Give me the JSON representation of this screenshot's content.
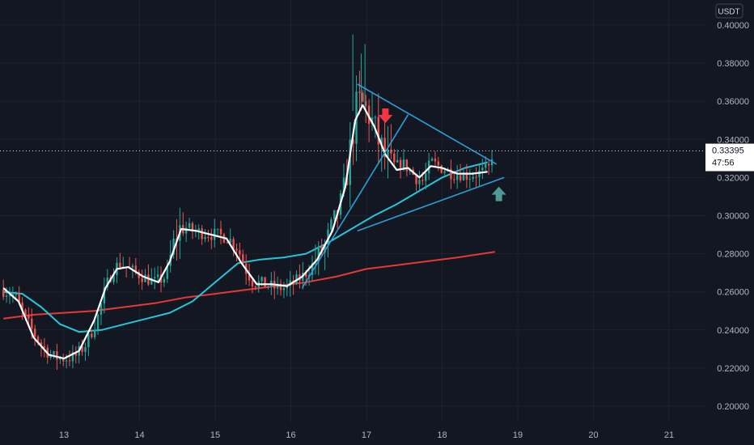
{
  "chart_data": {
    "type": "candlestick",
    "currency": "USDT",
    "ylim": [
      0.19,
      0.405
    ],
    "xlim": [
      12.2,
      21.5
    ],
    "y_ticks": [
      "0.40000",
      "0.38000",
      "0.36000",
      "0.34000",
      "0.32000",
      "0.30000",
      "0.28000",
      "0.26000",
      "0.24000",
      "0.22000",
      "0.20000"
    ],
    "y_tick_values": [
      0.4,
      0.38,
      0.36,
      0.34,
      0.32,
      0.3,
      0.28,
      0.26,
      0.24,
      0.22,
      0.2
    ],
    "x_ticks": [
      "13",
      "14",
      "15",
      "16",
      "17",
      "18",
      "19",
      "20",
      "21"
    ],
    "x_tick_values": [
      13,
      14,
      15,
      16,
      17,
      18,
      19,
      20,
      21
    ],
    "current_price": "0.33395",
    "current_price_value": 0.33395,
    "countdown": "47:56",
    "colors": {
      "up": "#26a69a",
      "down": "#ef5350",
      "fast_ma": "#ffffff",
      "mid_ma": "#26c6da",
      "slow_ma": "#e53935",
      "trendline": "#2a9fd6",
      "arrow_down": "#f23645",
      "arrow_up": "#4f9a94"
    },
    "price_path": [
      [
        12.2,
        0.261
      ],
      [
        12.35,
        0.258
      ],
      [
        12.5,
        0.245
      ],
      [
        12.7,
        0.232
      ],
      [
        12.85,
        0.226
      ],
      [
        13.0,
        0.225
      ],
      [
        13.15,
        0.226
      ],
      [
        13.3,
        0.233
      ],
      [
        13.45,
        0.247
      ],
      [
        13.55,
        0.262
      ],
      [
        13.65,
        0.272
      ],
      [
        13.75,
        0.275
      ],
      [
        13.9,
        0.271
      ],
      [
        14.05,
        0.268
      ],
      [
        14.2,
        0.265
      ],
      [
        14.35,
        0.268
      ],
      [
        14.45,
        0.285
      ],
      [
        14.55,
        0.295
      ],
      [
        14.7,
        0.292
      ],
      [
        14.85,
        0.291
      ],
      [
        15.0,
        0.29
      ],
      [
        15.15,
        0.289
      ],
      [
        15.3,
        0.283
      ],
      [
        15.4,
        0.272
      ],
      [
        15.5,
        0.265
      ],
      [
        15.65,
        0.264
      ],
      [
        15.8,
        0.262
      ],
      [
        15.95,
        0.262
      ],
      [
        16.05,
        0.265
      ],
      [
        16.15,
        0.268
      ],
      [
        16.25,
        0.272
      ],
      [
        16.35,
        0.278
      ],
      [
        16.45,
        0.284
      ],
      [
        16.55,
        0.295
      ],
      [
        16.65,
        0.305
      ],
      [
        16.72,
        0.318
      ],
      [
        16.8,
        0.338
      ],
      [
        16.88,
        0.36
      ],
      [
        16.95,
        0.358
      ],
      [
        17.05,
        0.352
      ],
      [
        17.15,
        0.34
      ],
      [
        17.25,
        0.33
      ],
      [
        17.35,
        0.323
      ],
      [
        17.45,
        0.328
      ],
      [
        17.55,
        0.325
      ],
      [
        17.65,
        0.32
      ],
      [
        17.75,
        0.318
      ],
      [
        17.85,
        0.328
      ],
      [
        17.95,
        0.326
      ],
      [
        18.05,
        0.324
      ],
      [
        18.15,
        0.322
      ],
      [
        18.25,
        0.322
      ],
      [
        18.35,
        0.321
      ],
      [
        18.45,
        0.322
      ],
      [
        18.55,
        0.323
      ],
      [
        18.62,
        0.325
      ],
      [
        18.67,
        0.334
      ]
    ],
    "ma_fast": [
      [
        12.2,
        0.262
      ],
      [
        12.4,
        0.255
      ],
      [
        12.6,
        0.236
      ],
      [
        12.8,
        0.227
      ],
      [
        13.0,
        0.225
      ],
      [
        13.2,
        0.229
      ],
      [
        13.4,
        0.245
      ],
      [
        13.55,
        0.262
      ],
      [
        13.7,
        0.272
      ],
      [
        13.85,
        0.273
      ],
      [
        14.05,
        0.268
      ],
      [
        14.25,
        0.265
      ],
      [
        14.4,
        0.276
      ],
      [
        14.55,
        0.293
      ],
      [
        14.75,
        0.292
      ],
      [
        14.95,
        0.29
      ],
      [
        15.15,
        0.288
      ],
      [
        15.35,
        0.275
      ],
      [
        15.55,
        0.264
      ],
      [
        15.75,
        0.264
      ],
      [
        15.95,
        0.263
      ],
      [
        16.15,
        0.268
      ],
      [
        16.35,
        0.277
      ],
      [
        16.55,
        0.292
      ],
      [
        16.72,
        0.315
      ],
      [
        16.85,
        0.35
      ],
      [
        16.95,
        0.358
      ],
      [
        17.1,
        0.347
      ],
      [
        17.25,
        0.332
      ],
      [
        17.4,
        0.324
      ],
      [
        17.55,
        0.325
      ],
      [
        17.7,
        0.32
      ],
      [
        17.85,
        0.326
      ],
      [
        18.0,
        0.325
      ],
      [
        18.2,
        0.322
      ],
      [
        18.4,
        0.322
      ],
      [
        18.6,
        0.323
      ]
    ],
    "ma_mid": [
      [
        12.2,
        0.26
      ],
      [
        12.45,
        0.259
      ],
      [
        12.7,
        0.252
      ],
      [
        12.95,
        0.243
      ],
      [
        13.2,
        0.239
      ],
      [
        13.5,
        0.24
      ],
      [
        13.8,
        0.243
      ],
      [
        14.1,
        0.246
      ],
      [
        14.4,
        0.249
      ],
      [
        14.7,
        0.255
      ],
      [
        15.0,
        0.265
      ],
      [
        15.3,
        0.275
      ],
      [
        15.6,
        0.277
      ],
      [
        15.9,
        0.278
      ],
      [
        16.2,
        0.28
      ],
      [
        16.5,
        0.286
      ],
      [
        16.8,
        0.293
      ],
      [
        17.1,
        0.3
      ],
      [
        17.4,
        0.306
      ],
      [
        17.7,
        0.313
      ],
      [
        18.0,
        0.32
      ],
      [
        18.3,
        0.325
      ],
      [
        18.6,
        0.328
      ]
    ],
    "ma_slow": [
      [
        12.2,
        0.246
      ],
      [
        12.6,
        0.248
      ],
      [
        13.0,
        0.249
      ],
      [
        13.4,
        0.25
      ],
      [
        13.8,
        0.252
      ],
      [
        14.2,
        0.254
      ],
      [
        14.6,
        0.257
      ],
      [
        15.0,
        0.259
      ],
      [
        15.4,
        0.261
      ],
      [
        15.8,
        0.263
      ],
      [
        16.2,
        0.265
      ],
      [
        16.6,
        0.268
      ],
      [
        17.0,
        0.272
      ],
      [
        17.4,
        0.274
      ],
      [
        17.8,
        0.276
      ],
      [
        18.2,
        0.278
      ],
      [
        18.7,
        0.281
      ]
    ],
    "trendlines": [
      {
        "from": [
          16.15,
          0.262
        ],
        "to": [
          17.55,
          0.353
        ]
      },
      {
        "from": [
          16.88,
          0.369
        ],
        "to": [
          18.72,
          0.327
        ]
      },
      {
        "from": [
          16.88,
          0.292
        ],
        "to": [
          18.82,
          0.32
        ]
      }
    ],
    "markers": [
      {
        "kind": "arrow-down",
        "x": 17.25,
        "y": 0.352
      },
      {
        "kind": "arrow-up",
        "x": 18.75,
        "y": 0.311
      }
    ]
  }
}
